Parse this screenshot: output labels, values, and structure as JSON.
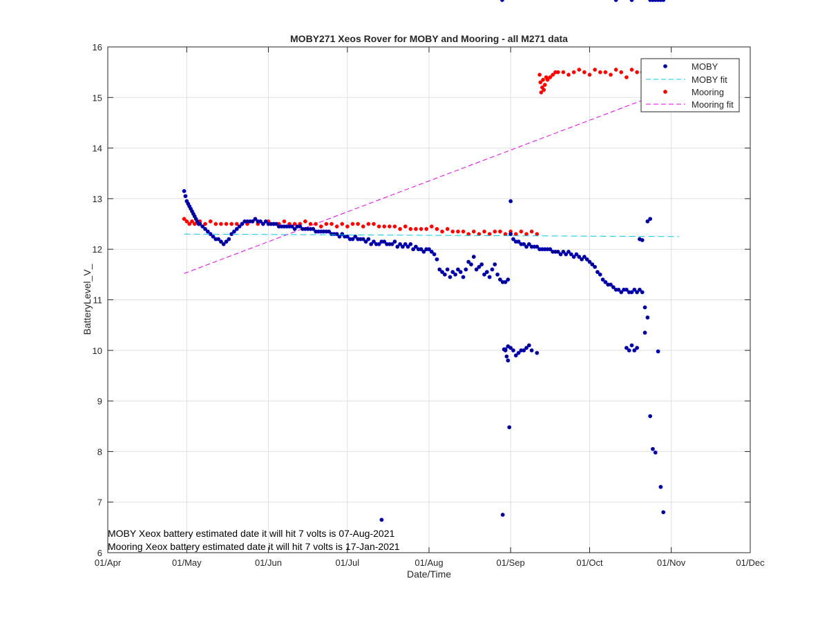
{
  "chart_data": {
    "type": "scatter",
    "title": "MOBY271 Xeos Rover for MOBY and Mooring - all M271 data",
    "xlabel": "Date/Time",
    "ylabel": "BatteryLevel_V_",
    "xlim": [
      "01/Apr",
      "01/Dec"
    ],
    "ylim": [
      6,
      16
    ],
    "x_ticks": [
      "01/Apr",
      "01/May",
      "01/Jun",
      "01/Jul",
      "01/Aug",
      "01/Sep",
      "01/Oct",
      "01/Nov",
      "01/Dec"
    ],
    "y_ticks": [
      "6",
      "7",
      "8",
      "9",
      "10",
      "11",
      "12",
      "13",
      "14",
      "15",
      "16"
    ],
    "grid": true,
    "legend_position": "top-right",
    "annotations": [
      "MOBY Xeox battery estimated date it will hit 7 volts is 07-Aug-2021",
      "Mooring Xeox battery estimated date it will hit 7 volts is 17-Jan-2021"
    ],
    "colors": {
      "moby": "#000080",
      "moby_edge": "#0000ff",
      "mooring": "#ff0000",
      "moby_fit": "#00c8e6",
      "mooring_fit": "#e600e6"
    },
    "series": [
      {
        "name": "MOBY",
        "style": "markers",
        "x_day_of_year": [
          120,
          120.5,
          121,
          121.5,
          122,
          122.5,
          123,
          123.5,
          124,
          124.5,
          125,
          125.5,
          126,
          127,
          128,
          129,
          130,
          131,
          132,
          133,
          134,
          135,
          136,
          137,
          138,
          139,
          140,
          141,
          142,
          143,
          144,
          145,
          146,
          147,
          148,
          149,
          150,
          151,
          152,
          153,
          154,
          155,
          156,
          157,
          158,
          159,
          160,
          161,
          162,
          163,
          164,
          165,
          166,
          167,
          168,
          169,
          170,
          171,
          172,
          173,
          174,
          175,
          176,
          177,
          178,
          179,
          180,
          181,
          182,
          183,
          184,
          185,
          186,
          187,
          188,
          189,
          190,
          191,
          192,
          193,
          194,
          195,
          196,
          197,
          198,
          199,
          200,
          201,
          202,
          203,
          204,
          205,
          206,
          207,
          208,
          209,
          210,
          211,
          212,
          213,
          214,
          215,
          216,
          217,
          218,
          219,
          220,
          221,
          222,
          223,
          224,
          225,
          226,
          227,
          228,
          229,
          230,
          231,
          232,
          233,
          234,
          235,
          236,
          237,
          238,
          239,
          240,
          241,
          242,
          243,
          244,
          245,
          246,
          247,
          248,
          249,
          250,
          251,
          252,
          253,
          254,
          255,
          256,
          257,
          258,
          259,
          260,
          261,
          262,
          263,
          264,
          265,
          266,
          267,
          268,
          269,
          270,
          271,
          272,
          273,
          274,
          275,
          276,
          277,
          278,
          279,
          280,
          281,
          282,
          283,
          284,
          285,
          286,
          287,
          288,
          289,
          290,
          291,
          292,
          293,
          294,
          295,
          296,
          297,
          298,
          299,
          300,
          301,
          302,
          195,
          241,
          241.5,
          242,
          242,
          242.5,
          243,
          243,
          243.5,
          244,
          244,
          245,
          246,
          247,
          248,
          249,
          250,
          251,
          252,
          254,
          288,
          289,
          290,
          291,
          292,
          293,
          294,
          295,
          296,
          297,
          298,
          299,
          300,
          301,
          302,
          297,
          298,
          284,
          290,
          240.8
        ],
        "y": [
          13.15,
          13.05,
          12.95,
          12.9,
          12.85,
          12.8,
          12.75,
          12.7,
          12.65,
          12.6,
          12.55,
          12.5,
          12.5,
          12.45,
          12.4,
          12.35,
          12.3,
          12.25,
          12.2,
          12.2,
          12.15,
          12.1,
          12.15,
          12.2,
          12.3,
          12.35,
          12.4,
          12.45,
          12.5,
          12.55,
          12.55,
          12.55,
          12.55,
          12.6,
          12.55,
          12.55,
          12.5,
          12.55,
          12.5,
          12.5,
          12.5,
          12.5,
          12.45,
          12.45,
          12.45,
          12.45,
          12.45,
          12.45,
          12.4,
          12.45,
          12.45,
          12.4,
          12.4,
          12.4,
          12.4,
          12.4,
          12.35,
          12.35,
          12.35,
          12.35,
          12.35,
          12.35,
          12.3,
          12.3,
          12.3,
          12.25,
          12.3,
          12.25,
          12.25,
          12.2,
          12.2,
          12.25,
          12.2,
          12.2,
          12.2,
          12.15,
          12.2,
          12.1,
          12.15,
          12.1,
          12.1,
          12.15,
          12.15,
          12.1,
          12.1,
          12.1,
          12.15,
          12.05,
          12.1,
          12.05,
          12.1,
          12.05,
          12.1,
          12.0,
          12.05,
          12.0,
          12.0,
          11.95,
          12.0,
          12.0,
          11.95,
          11.9,
          11.8,
          11.6,
          11.55,
          11.5,
          11.6,
          11.45,
          11.55,
          11.5,
          11.6,
          11.55,
          11.45,
          11.6,
          11.75,
          11.7,
          11.85,
          11.6,
          11.65,
          11.7,
          11.5,
          11.55,
          11.45,
          11.6,
          11.7,
          11.5,
          11.4,
          11.35,
          11.35,
          11.4,
          12.3,
          12.2,
          12.15,
          12.15,
          12.1,
          12.1,
          12.05,
          12.1,
          12.05,
          12.05,
          12.05,
          12.0,
          12.0,
          12.0,
          12.0,
          12.0,
          11.95,
          11.95,
          11.95,
          11.9,
          11.95,
          11.9,
          11.95,
          11.9,
          11.85,
          11.9,
          11.85,
          11.8,
          11.85,
          11.8,
          11.75,
          11.7,
          11.65,
          11.55,
          11.5,
          11.4,
          11.35,
          11.3,
          11.3,
          11.25,
          11.2,
          11.2,
          11.15,
          11.2,
          11.2,
          11.15,
          11.15,
          11.2,
          11.15,
          11.2,
          11.15,
          10.85,
          10.65,
          8.7,
          8.05,
          7.98,
          9.98,
          7.3,
          6.8,
          6.65,
          6.75,
          10.02,
          10.02,
          10.0,
          9.88,
          9.8,
          10.08,
          8.48,
          12.95,
          10.05,
          10.0,
          9.9,
          9.95,
          10.0,
          10.0,
          10.05,
          10.1,
          10.0,
          9.95,
          10.05,
          10.0,
          10.1,
          10.0,
          10.05,
          12.2,
          12.18,
          10.35,
          12.55,
          12.6
        ]
      },
      {
        "name": "MOBY fit",
        "style": "dashed",
        "x_day_of_year": [
          120,
          308
        ],
        "y": [
          12.3,
          12.25
        ]
      },
      {
        "name": "Mooring",
        "style": "markers",
        "x_day_of_year": [
          120,
          121,
          122,
          123,
          124,
          125,
          126,
          128,
          130,
          132,
          134,
          136,
          138,
          140,
          142,
          144,
          146,
          148,
          150,
          152,
          154,
          156,
          158,
          160,
          162,
          164,
          166,
          168,
          170,
          172,
          174,
          176,
          178,
          180,
          182,
          184,
          186,
          188,
          190,
          192,
          194,
          196,
          198,
          200,
          202,
          204,
          206,
          208,
          210,
          212,
          214,
          216,
          218,
          220,
          222,
          224,
          226,
          228,
          230,
          232,
          234,
          236,
          238,
          240,
          242,
          244,
          246,
          248,
          250,
          252,
          254,
          255,
          255.3,
          255.6,
          256,
          256.3,
          256.6,
          257,
          257.5,
          258,
          259,
          260,
          261,
          262,
          264,
          266,
          268,
          270,
          272,
          274,
          276,
          278,
          280,
          282,
          284,
          286,
          288,
          290,
          292,
          294,
          296,
          298,
          300,
          302
        ],
        "y": [
          12.6,
          12.55,
          12.5,
          12.55,
          12.5,
          12.55,
          12.55,
          12.5,
          12.55,
          12.5,
          12.5,
          12.5,
          12.5,
          12.5,
          12.5,
          12.5,
          12.55,
          12.5,
          12.5,
          12.55,
          12.5,
          12.5,
          12.55,
          12.5,
          12.5,
          12.5,
          12.55,
          12.5,
          12.5,
          12.45,
          12.5,
          12.5,
          12.45,
          12.5,
          12.45,
          12.5,
          12.5,
          12.45,
          12.5,
          12.5,
          12.45,
          12.45,
          12.45,
          12.45,
          12.4,
          12.45,
          12.4,
          12.4,
          12.4,
          12.4,
          12.45,
          12.4,
          12.35,
          12.4,
          12.35,
          12.35,
          12.35,
          12.3,
          12.35,
          12.3,
          12.35,
          12.3,
          12.35,
          12.35,
          12.3,
          12.35,
          12.3,
          12.35,
          12.3,
          12.35,
          12.3,
          15.45,
          15.3,
          15.1,
          15.2,
          15.35,
          15.15,
          15.25,
          15.4,
          15.35,
          15.4,
          15.45,
          15.5,
          15.5,
          15.5,
          15.45,
          15.5,
          15.55,
          15.5,
          15.45,
          15.55,
          15.5,
          15.5,
          15.45,
          15.55,
          15.5,
          15.4,
          15.55,
          15.5,
          15.5,
          15.45,
          15.55,
          15.5,
          15.55
        ]
      },
      {
        "name": "Mooring fit",
        "style": "dashed",
        "x_day_of_year": [
          120,
          308
        ],
        "y": [
          11.52,
          15.22
        ]
      }
    ]
  }
}
